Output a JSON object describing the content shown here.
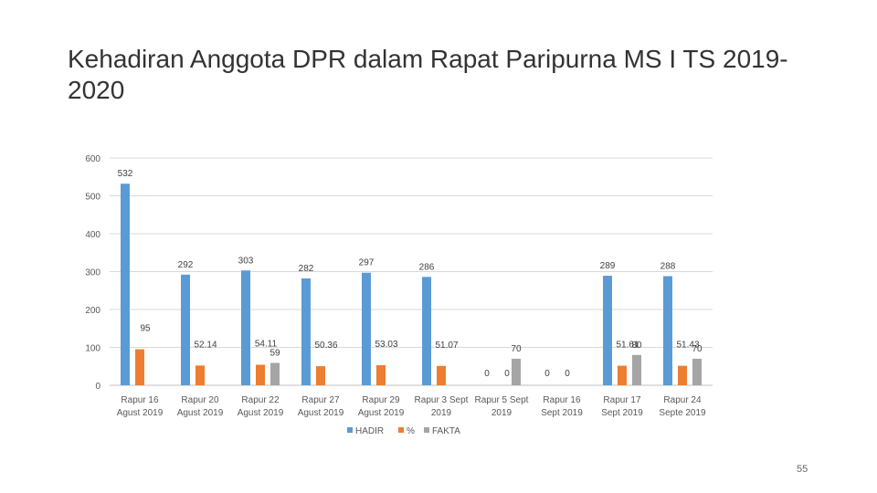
{
  "title": "Kehadiran Anggota DPR dalam Rapat Paripurna MS I TS 2019-2020",
  "page_number": "55",
  "colors": {
    "HADIR": "#5B9BD5",
    "%": "#ED7D31",
    "FAKTA": "#A5A5A5",
    "grid": "#D9D9D9"
  },
  "chart_data": {
    "type": "bar",
    "title": "",
    "xlabel": "",
    "ylabel": "",
    "ylim": [
      0,
      600
    ],
    "yticks": [
      0,
      100,
      200,
      300,
      400,
      500,
      600
    ],
    "grid": true,
    "legend_position": "bottom",
    "categories": [
      [
        "Rapur 16",
        "Agust 2019"
      ],
      [
        "Rapur 20",
        "Agust 2019"
      ],
      [
        "Rapur 22",
        "Agust 2019"
      ],
      [
        "Rapur 27",
        "Agust 2019"
      ],
      [
        "Rapur 29",
        "Agust 2019"
      ],
      [
        "Rapur 3 Sept",
        "2019"
      ],
      [
        "Rapur 5 Sept",
        "2019"
      ],
      [
        "Rapur 16",
        "Sept 2019"
      ],
      [
        "Rapur 17",
        "Sept 2019"
      ],
      [
        "Rapur 24",
        "Septe 2019"
      ]
    ],
    "series": [
      {
        "name": "HADIR",
        "values": [
          532,
          292,
          303,
          282,
          297,
          286,
          null,
          null,
          289,
          288
        ],
        "labels": [
          "532",
          "292",
          "303",
          "282",
          "297",
          "286",
          "0",
          "0",
          "289",
          "288"
        ]
      },
      {
        "name": "%",
        "values": [
          95,
          52.14,
          54.11,
          50.36,
          53.03,
          51.07,
          null,
          null,
          51.61,
          51.43
        ],
        "labels": [
          "95",
          "52.14",
          "54.11",
          "50.36",
          "53.03",
          "51.07",
          "0",
          "0",
          "51.61",
          "51.43"
        ]
      },
      {
        "name": "FAKTA",
        "values": [
          null,
          null,
          59,
          null,
          null,
          null,
          70,
          null,
          80,
          70
        ],
        "labels": [
          "",
          "",
          "59",
          "",
          "",
          "",
          "70",
          "",
          "80",
          "70"
        ]
      }
    ]
  }
}
